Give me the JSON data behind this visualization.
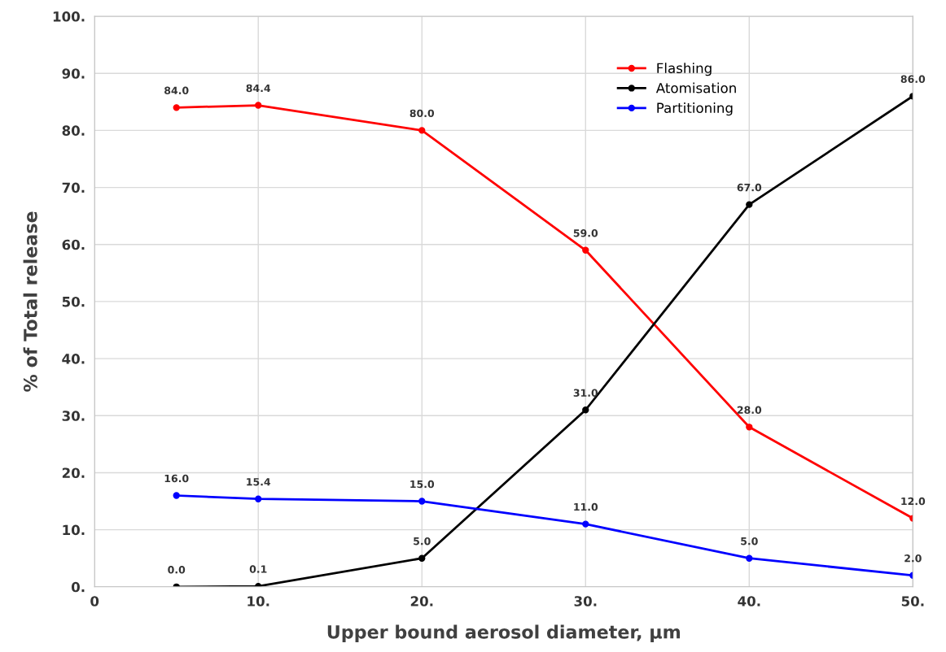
{
  "chart_data": {
    "type": "line",
    "xlabel": "Upper bound aerosol diameter, µm",
    "ylabel": "% of Total release",
    "x": [
      5,
      10,
      20,
      30,
      40,
      50
    ],
    "series": [
      {
        "name": "Flashing",
        "color": "#ff0000",
        "values": [
          84.0,
          84.4,
          80.0,
          59.0,
          28.0,
          12.0
        ],
        "value_labels": [
          "84.0",
          "84.4",
          "80.0",
          "59.0",
          "28.0",
          "12.0"
        ]
      },
      {
        "name": "Atomisation",
        "color": "#000000",
        "values": [
          0.0,
          0.1,
          5.0,
          31.0,
          67.0,
          86.0
        ],
        "value_labels": [
          "0.0",
          "0.1",
          "5.0",
          "31.0",
          "67.0",
          "86.0"
        ]
      },
      {
        "name": "Partitioning",
        "color": "#0000ff",
        "values": [
          16.0,
          15.4,
          15.0,
          11.0,
          5.0,
          2.0
        ],
        "value_labels": [
          "16.0",
          "15.4",
          "15.0",
          "11.0",
          "5.0",
          "2.0"
        ]
      }
    ],
    "xlim": [
      0,
      50
    ],
    "ylim": [
      0,
      100
    ],
    "xticks": [
      0,
      {
        "value": 10,
        "label": "10."
      },
      {
        "value": 20,
        "label": "20."
      },
      {
        "value": 30,
        "label": "30."
      },
      {
        "value": 40,
        "label": "40."
      },
      {
        "value": 50,
        "label": "50."
      }
    ],
    "yticks": [
      {
        "value": 0,
        "label": "0."
      },
      {
        "value": 10,
        "label": "10."
      },
      {
        "value": 20,
        "label": "20."
      },
      {
        "value": 30,
        "label": "30."
      },
      {
        "value": 40,
        "label": "40."
      },
      {
        "value": 50,
        "label": "50."
      },
      {
        "value": 60,
        "label": "60."
      },
      {
        "value": 70,
        "label": "70."
      },
      {
        "value": 80,
        "label": "80."
      },
      {
        "value": 90,
        "label": "90."
      },
      {
        "value": 100,
        "label": "100."
      }
    ],
    "grid": true,
    "legend": "top right",
    "marker": "circle",
    "line_style": "solid"
  }
}
